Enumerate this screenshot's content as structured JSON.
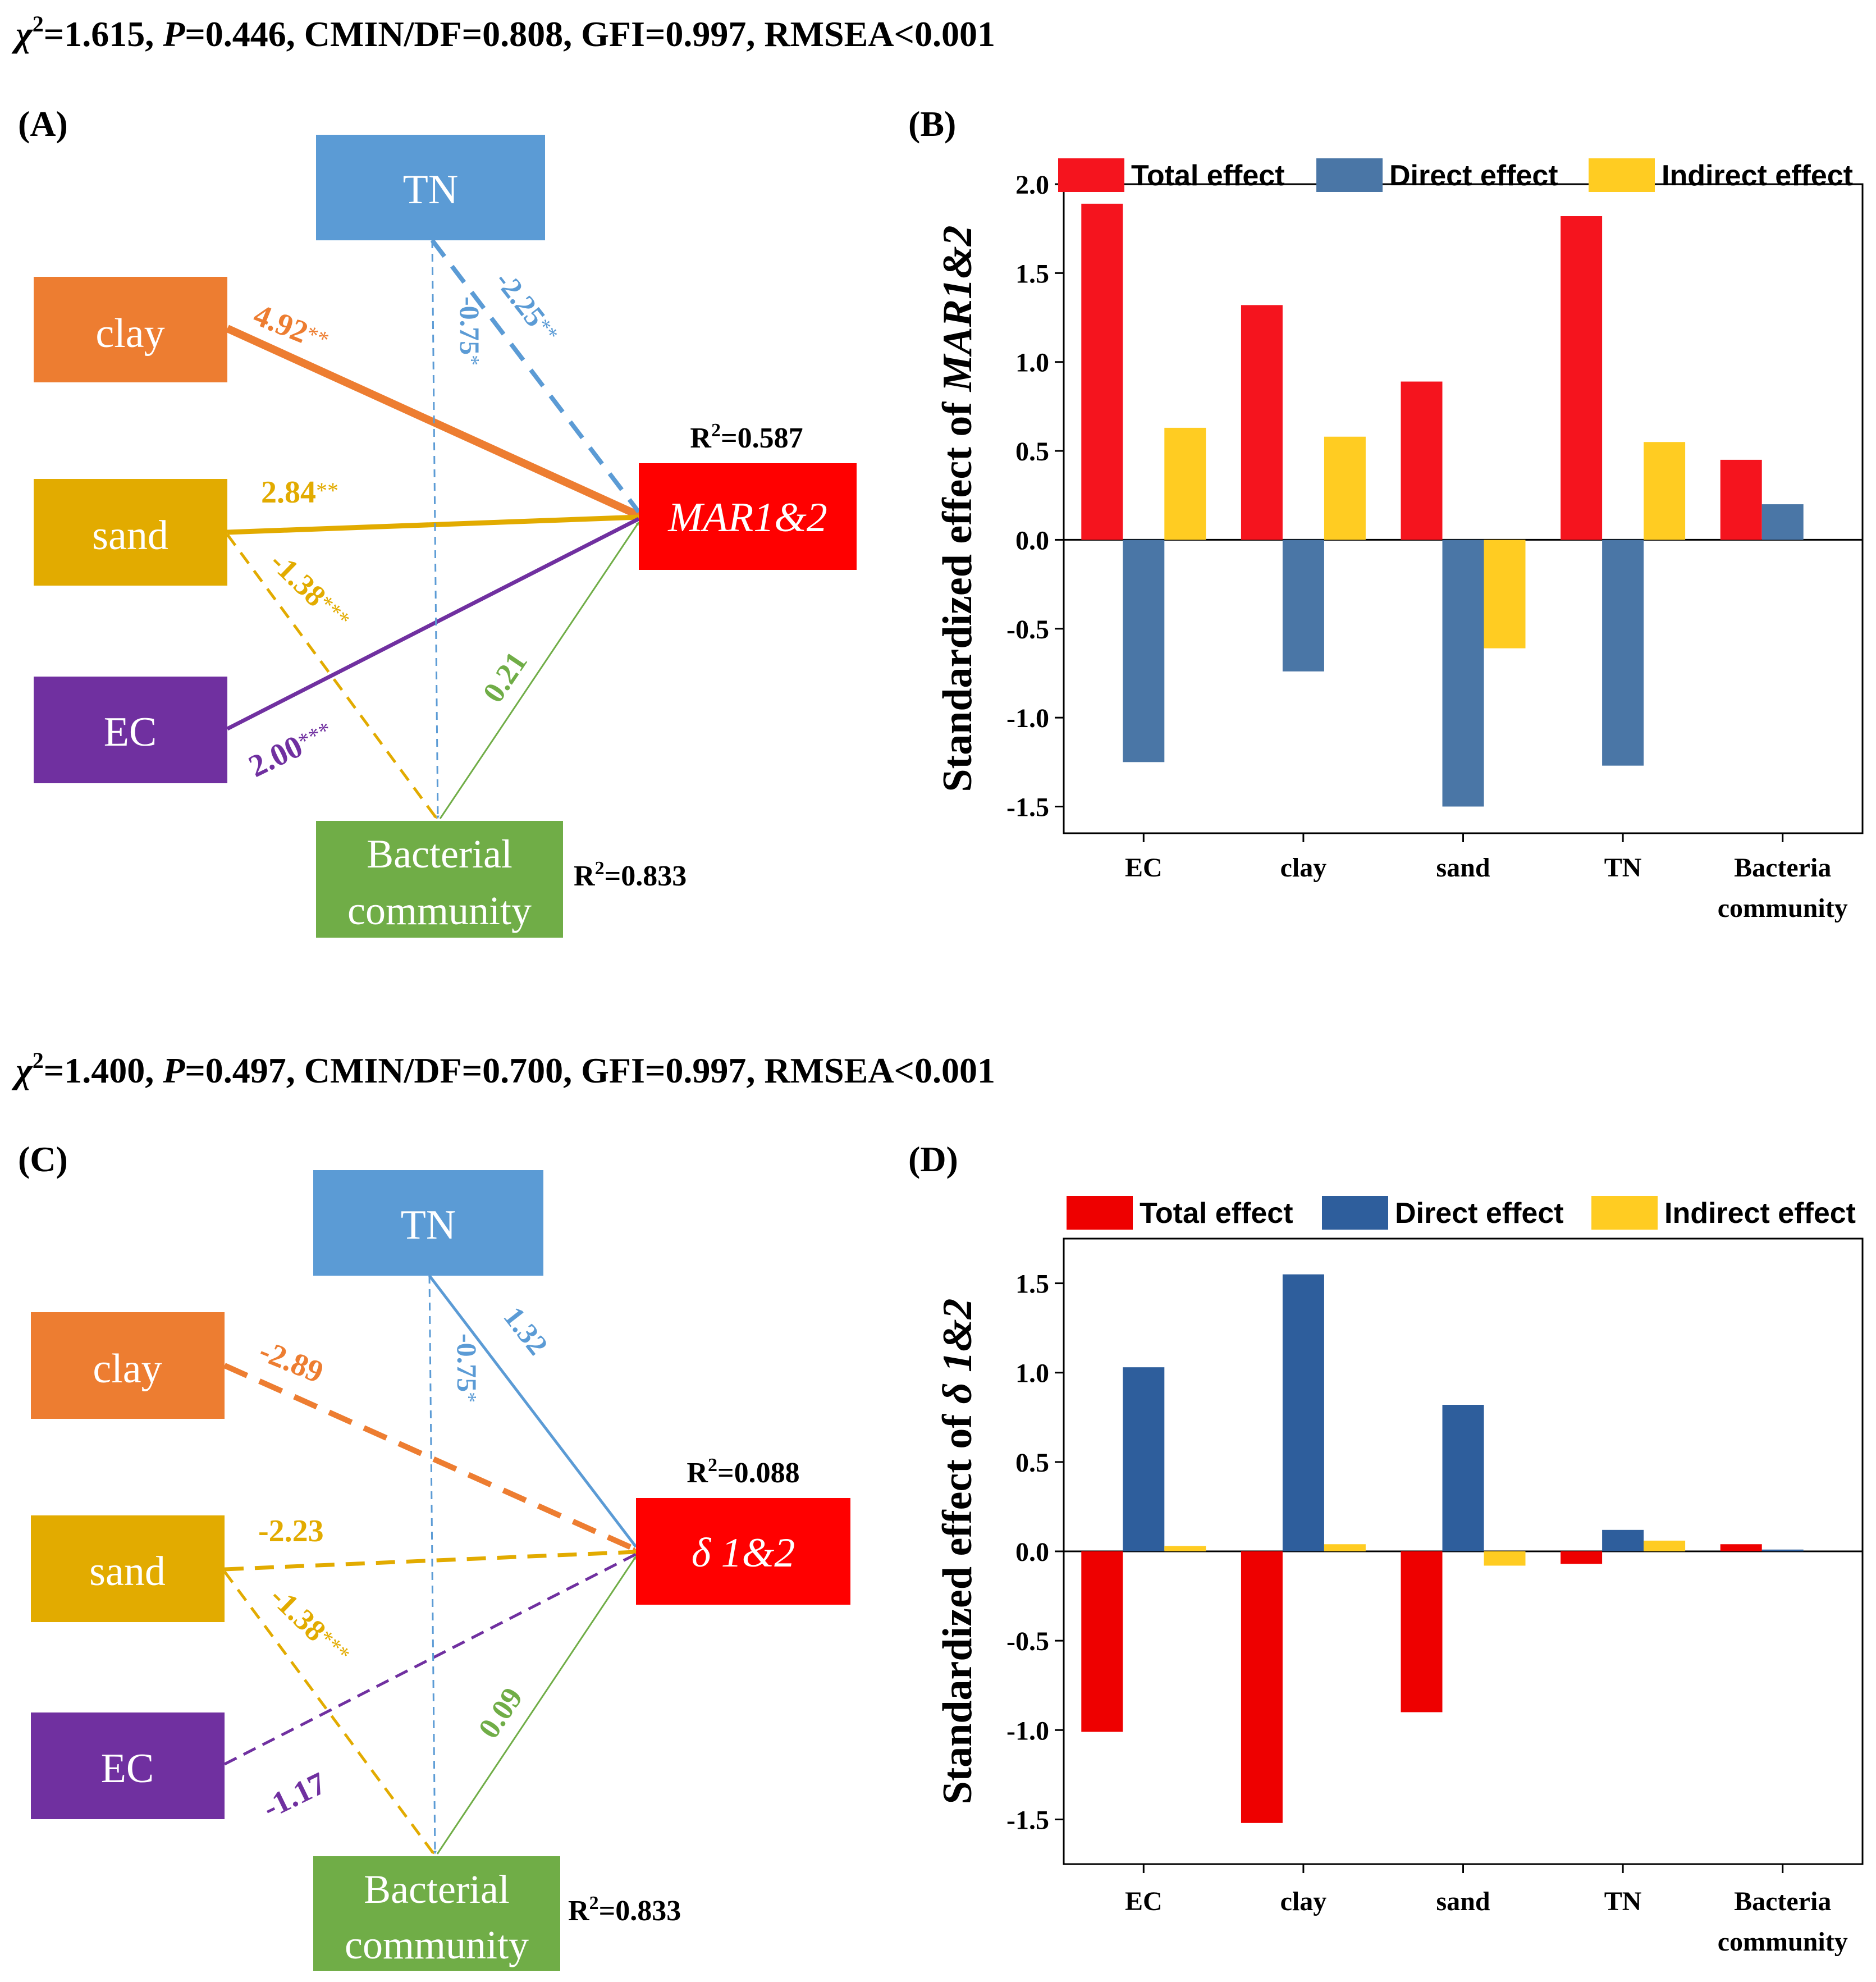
{
  "colors": {
    "clay": "#ED7D31",
    "sand": "#E2AB00",
    "ec": "#7030A0",
    "tn": "#5B9BD5",
    "bacteria": "#70AD47",
    "target": "#FF0000",
    "total": "#F5141E",
    "direct_top": "#4A76A6",
    "direct_bottom": "#2E5E9C",
    "indirect": "#FFCC22"
  },
  "panels": [
    {
      "stats": {
        "chi_symbol": "χ",
        "chi_sup": "2",
        "chi_value": "=1.615, ",
        "p_symbol": "P",
        "rest": "=0.446, CMIN/DF=0.808, GFI=0.997, RMSEA<0.001"
      },
      "sem": {
        "label": "(A)",
        "nodes": {
          "tn": "TN",
          "clay": "clay",
          "sand": "sand",
          "ec": "EC",
          "bacteria_line1": "Bacterial",
          "bacteria_line2": "community",
          "target": "MAR1&2"
        },
        "r2_target": {
          "prefix": "R",
          "sup": "2",
          "value": "=0.587"
        },
        "r2_bacteria": {
          "prefix": "R",
          "sup": "2",
          "value": "=0.833"
        },
        "paths": [
          {
            "id": "clay-target",
            "coef": "4.92",
            "stars": "**",
            "style": "solid",
            "color": "clay"
          },
          {
            "id": "sand-target",
            "coef": "2.84",
            "stars": "**",
            "style": "solid",
            "color": "sand"
          },
          {
            "id": "sand-bacteria",
            "coef": "-1.38",
            "stars": "***",
            "style": "dashed",
            "color": "sand"
          },
          {
            "id": "ec-target",
            "coef": "2.00",
            "stars": "***",
            "style": "solid",
            "color": "ec"
          },
          {
            "id": "tn-target",
            "coef": "-2.25",
            "stars": "**",
            "style": "dashed",
            "color": "tn"
          },
          {
            "id": "tn-bacteria",
            "coef": "-0.75",
            "stars": "*",
            "style": "dashed",
            "color": "tn"
          },
          {
            "id": "bacteria-target",
            "coef": "0.21",
            "stars": "",
            "style": "solid",
            "color": "bacteria"
          }
        ]
      },
      "chart_label": "(B)",
      "chart_data": {
        "type": "bar",
        "title": "",
        "xlabel": "",
        "ylabel_prefix": "Standardized effect of ",
        "ylabel_italic": "MAR1&2",
        "categories": [
          "EC",
          "clay",
          "sand",
          "TN",
          "Bacteria community"
        ],
        "series": [
          {
            "name": "Total effect",
            "values": [
              1.89,
              1.32,
              0.89,
              1.82,
              0.45
            ]
          },
          {
            "name": "Direct effect",
            "values": [
              -1.25,
              -0.74,
              -1.5,
              -1.27,
              0.2
            ]
          },
          {
            "name": "Indirect effect",
            "values": [
              0.63,
              0.58,
              -0.61,
              0.55,
              null
            ]
          }
        ],
        "ylim": [
          -1.65,
          2.0
        ],
        "yticks": [
          2.0,
          1.5,
          1.0,
          0.5,
          0.0,
          -0.5,
          -1.0,
          -1.5
        ],
        "ytick_labels": [
          "2.0",
          "1.5",
          "1.0",
          "0.5",
          "0.0",
          "-0.5",
          "-1.0",
          "-1.5"
        ],
        "legend_position": "top",
        "grid": false
      }
    },
    {
      "stats": {
        "chi_symbol": "χ",
        "chi_sup": "2",
        "chi_value": "=1.400, ",
        "p_symbol": "P",
        "rest": "=0.497, CMIN/DF=0.700, GFI=0.997, RMSEA<0.001"
      },
      "sem": {
        "label": "(C)",
        "nodes": {
          "tn": "TN",
          "clay": "clay",
          "sand": "sand",
          "ec": "EC",
          "bacteria_line1": "Bacterial",
          "bacteria_line2": "community",
          "target": "δ 1&2"
        },
        "r2_target": {
          "prefix": "R",
          "sup": "2",
          "value": "=0.088"
        },
        "r2_bacteria": {
          "prefix": "R",
          "sup": "2",
          "value": "=0.833"
        },
        "paths": [
          {
            "id": "clay-target",
            "coef": "-2.89",
            "stars": "",
            "style": "dashed",
            "color": "clay"
          },
          {
            "id": "sand-target",
            "coef": "-2.23",
            "stars": "",
            "style": "dashed",
            "color": "sand"
          },
          {
            "id": "sand-bacteria",
            "coef": "-1.38",
            "stars": "***",
            "style": "dashed",
            "color": "sand"
          },
          {
            "id": "ec-target",
            "coef": "-1.17",
            "stars": "",
            "style": "dashed",
            "color": "ec"
          },
          {
            "id": "tn-target",
            "coef": "1.32",
            "stars": "",
            "style": "solid",
            "color": "tn"
          },
          {
            "id": "tn-bacteria",
            "coef": "-0.75",
            "stars": "*",
            "style": "dashed",
            "color": "tn"
          },
          {
            "id": "bacteria-target",
            "coef": "0.09",
            "stars": "",
            "style": "solid",
            "color": "bacteria"
          }
        ]
      },
      "chart_label": "(D)",
      "chart_data": {
        "type": "bar",
        "title": "",
        "xlabel": "",
        "ylabel_prefix": "Standardized effect of ",
        "ylabel_italic": "δ 1&2",
        "categories": [
          "EC",
          "clay",
          "sand",
          "TN",
          "Bacteria community"
        ],
        "series": [
          {
            "name": "Total effect",
            "values": [
              -1.01,
              -1.52,
              -0.9,
              -0.07,
              0.04
            ]
          },
          {
            "name": "Direct effect",
            "values": [
              1.03,
              1.55,
              0.82,
              0.12,
              0.01
            ]
          },
          {
            "name": "Indirect effect",
            "values": [
              0.03,
              0.04,
              -0.08,
              0.06,
              null
            ]
          }
        ],
        "ylim": [
          -1.75,
          1.75
        ],
        "yticks": [
          1.5,
          1.0,
          0.5,
          0.0,
          -0.5,
          -1.0,
          -1.5
        ],
        "ytick_labels": [
          "1.5",
          "1.0",
          "0.5",
          "0.0",
          "-0.5",
          "-1.0",
          "-1.5"
        ],
        "legend_position": "top",
        "grid": false
      }
    }
  ]
}
